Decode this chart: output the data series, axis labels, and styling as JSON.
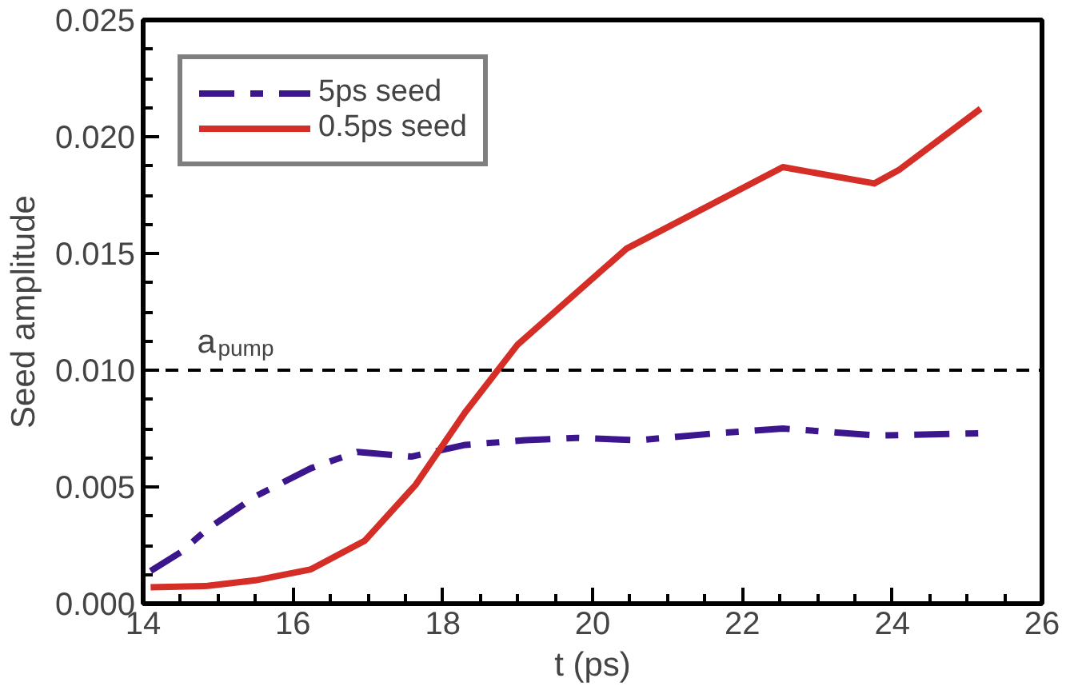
{
  "chart_data": {
    "type": "line",
    "xlabel": "t (ps)",
    "ylabel": "Seed amplitude",
    "xlim": [
      14,
      26
    ],
    "xticks": [
      14,
      16,
      18,
      20,
      22,
      24,
      26
    ],
    "ylim": [
      0,
      0.025
    ],
    "yticks": [
      {
        "value": 0,
        "label": "0.000"
      },
      {
        "value": 0.005,
        "label": "0.005"
      },
      {
        "value": 0.01,
        "label": "0.010"
      },
      {
        "value": 0.015,
        "label": "0.015"
      },
      {
        "value": 0.02,
        "label": "0.020"
      },
      {
        "value": 0.025,
        "label": "0.025"
      }
    ],
    "grid": false,
    "legend": "top left",
    "ref_lines": [
      {
        "axis": "y",
        "value": 0.01,
        "label": "a$_{pump}$",
        "color": "#000000",
        "line_style": "dashed"
      }
    ],
    "series": [
      {
        "name": "5ps seed",
        "color": "#3b168c",
        "line_style": "dashdot",
        "x": [
          14.1,
          14.5,
          14.86,
          15.5,
          16.24,
          16.86,
          17.58,
          18.3,
          19.1,
          19.78,
          20.62,
          21.66,
          22.54,
          23.82,
          25.18
        ],
        "values": [
          0.0014,
          0.0022,
          0.0032,
          0.0046,
          0.0058,
          0.0065,
          0.0063,
          0.0068,
          0.007,
          0.0071,
          0.007,
          0.0073,
          0.0075,
          0.0072,
          0.0073
        ]
      },
      {
        "name": "0.5ps seed",
        "color": "#d42e27",
        "line_style": "solid",
        "x": [
          14.1,
          14.86,
          15.5,
          16.24,
          16.96,
          17.64,
          18.3,
          19.0,
          20.45,
          22.54,
          23.76,
          24.1,
          25.18
        ],
        "values": [
          0.0007,
          0.00076,
          0.001,
          0.00147,
          0.0027,
          0.0051,
          0.0082,
          0.0111,
          0.0152,
          0.0187,
          0.018,
          0.0186,
          0.0212
        ]
      }
    ]
  }
}
